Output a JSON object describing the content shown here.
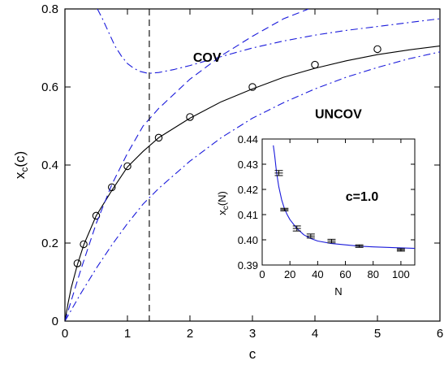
{
  "chart_data": [
    {
      "type": "line",
      "xlabel": "c",
      "ylabel": "x",
      "ylabel_sub": "c",
      "ylabel_arg": "(c)",
      "xlim": [
        0,
        6
      ],
      "ylim": [
        0,
        0.8
      ],
      "xticks": [
        "0",
        "1",
        "2",
        "3",
        "4",
        "5",
        "6"
      ],
      "yticks": [
        "0",
        "0.2",
        "0.4",
        "0.6",
        "0.8"
      ],
      "grid": false,
      "vline_x": 1.35,
      "annotations": [
        {
          "text": "COV",
          "x": 2.05,
          "y": 0.665
        },
        {
          "text": "UNCOV",
          "x": 4.0,
          "y": 0.52
        }
      ],
      "series": [
        {
          "style": "solid-black",
          "x": [
            0,
            0.05,
            0.1,
            0.2,
            0.3,
            0.5,
            0.75,
            1.0,
            1.25,
            1.5,
            2.0,
            2.5,
            3.0,
            3.5,
            4.0,
            4.5,
            5.0,
            5.5,
            6.0
          ],
          "y": [
            0,
            0.045,
            0.085,
            0.145,
            0.195,
            0.27,
            0.335,
            0.395,
            0.435,
            0.47,
            0.52,
            0.562,
            0.595,
            0.625,
            0.648,
            0.667,
            0.683,
            0.695,
            0.705
          ]
        },
        {
          "style": "circles",
          "x": [
            0.2,
            0.3,
            0.5,
            0.75,
            1.0,
            1.5,
            2.0,
            3.0,
            4.0,
            5.0
          ],
          "y": [
            0.148,
            0.197,
            0.27,
            0.343,
            0.397,
            0.47,
            0.523,
            0.6,
            0.657,
            0.697
          ]
        },
        {
          "style": "dash-dot-blue",
          "x": [
            0,
            0.25,
            0.5,
            0.75,
            1.0,
            1.25,
            1.5,
            2.0,
            2.5,
            3.0,
            3.5,
            4.0,
            4.5,
            5.0,
            5.5,
            6.0
          ],
          "y": [
            0,
            0.07,
            0.135,
            0.195,
            0.25,
            0.3,
            0.34,
            0.41,
            0.47,
            0.52,
            0.56,
            0.595,
            0.625,
            0.65,
            0.672,
            0.69
          ]
        },
        {
          "style": "dash-blue",
          "x": [
            0,
            0.25,
            0.5,
            0.75,
            1.0,
            1.25,
            1.5,
            2.0,
            2.5,
            3.0,
            3.5,
            3.9
          ],
          "y": [
            0,
            0.13,
            0.25,
            0.35,
            0.43,
            0.5,
            0.545,
            0.62,
            0.68,
            0.73,
            0.775,
            0.8
          ]
        },
        {
          "style": "dash-dot-blue",
          "x": [
            0.52,
            0.6,
            0.7,
            0.8,
            0.9,
            1.0,
            1.1,
            1.2,
            1.3,
            1.35,
            1.5,
            1.75,
            2.0,
            2.5,
            3.0,
            3.5,
            4.0,
            4.5,
            5.0,
            5.5,
            6.0
          ],
          "y": [
            0.8,
            0.775,
            0.74,
            0.705,
            0.68,
            0.66,
            0.648,
            0.64,
            0.636,
            0.635,
            0.637,
            0.645,
            0.655,
            0.678,
            0.7,
            0.718,
            0.733,
            0.745,
            0.755,
            0.765,
            0.775
          ]
        }
      ]
    },
    {
      "type": "line",
      "title": "c=1.0",
      "xlabel": "N",
      "ylabel": "x",
      "ylabel_sub": "c",
      "ylabel_arg": "(N)",
      "xlim": [
        0,
        110
      ],
      "ylim": [
        0.39,
        0.44
      ],
      "xticks": [
        "0",
        "20",
        "40",
        "60",
        "80",
        "100"
      ],
      "yticks": [
        "0.39",
        "0.40",
        "0.41",
        "0.42",
        "0.43",
        "0.44"
      ],
      "grid": false,
      "series": [
        {
          "style": "solid-blue",
          "x": [
            8,
            9,
            10,
            11,
            12,
            14,
            16,
            18,
            20,
            25,
            30,
            35,
            40,
            50,
            60,
            70,
            80,
            90,
            100,
            110
          ],
          "y": [
            0.4375,
            0.4335,
            0.4285,
            0.4245,
            0.421,
            0.416,
            0.4125,
            0.41,
            0.408,
            0.4045,
            0.402,
            0.4005,
            0.3995,
            0.3985,
            0.398,
            0.3975,
            0.3972,
            0.397,
            0.3968,
            0.3966
          ]
        },
        {
          "style": "error-bars",
          "x": [
            12,
            16,
            25,
            35,
            50,
            70,
            100
          ],
          "y": [
            0.4265,
            0.412,
            0.4045,
            0.4015,
            0.3995,
            0.3975,
            0.396
          ],
          "err": [
            0.001,
            0.0005,
            0.001,
            0.0008,
            0.0007,
            0.0005,
            0.0005
          ]
        }
      ]
    }
  ]
}
